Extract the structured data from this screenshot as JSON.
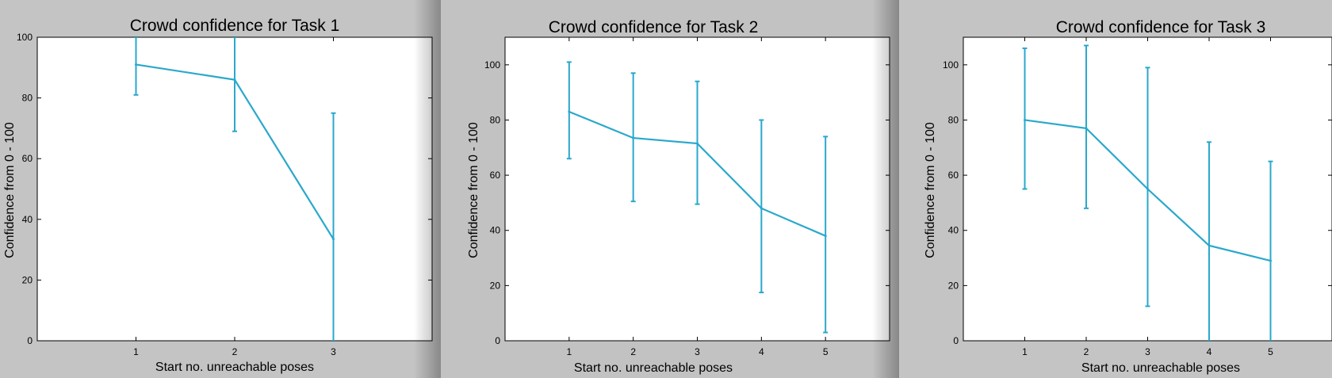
{
  "colors": {
    "series": "#2aa8cc",
    "plot_bg": "#ffffff",
    "frame": "#000000"
  },
  "chart_data": [
    {
      "type": "line",
      "title": "Crowd confidence for Task 1",
      "xlabel": "Start no. unreachable poses",
      "ylabel": "Confidence from 0 - 100",
      "x": [
        1,
        2,
        3
      ],
      "y": [
        91,
        86,
        33.5
      ],
      "err_low": [
        81,
        69,
        0
      ],
      "err_high": [
        100,
        100,
        75
      ],
      "xlim": [
        0,
        4
      ],
      "ylim": [
        0,
        100
      ],
      "xticks": [
        1,
        2,
        3
      ],
      "yticks": [
        0,
        20,
        40,
        60,
        80,
        100
      ],
      "grid": false
    },
    {
      "type": "line",
      "title": "Crowd confidence for Task 2",
      "xlabel": "Start no. unreachable poses",
      "ylabel": "Confidence from 0 - 100",
      "x": [
        1,
        2,
        3,
        4,
        5
      ],
      "y": [
        83,
        73.5,
        71.5,
        48,
        38
      ],
      "err_low": [
        66,
        50.5,
        49.5,
        17.5,
        3
      ],
      "err_high": [
        101,
        97,
        94,
        80,
        74
      ],
      "xlim": [
        0,
        6
      ],
      "ylim": [
        0,
        110
      ],
      "xticks": [
        1,
        2,
        3,
        4,
        5
      ],
      "yticks": [
        0,
        20,
        40,
        60,
        80,
        100
      ],
      "grid": false
    },
    {
      "type": "line",
      "title": "Crowd confidence for Task 3",
      "xlabel": "Start no. unreachable poses",
      "ylabel": "Confidence from 0 - 100",
      "x": [
        1,
        2,
        3,
        4,
        5
      ],
      "y": [
        80,
        77,
        55,
        34.5,
        29
      ],
      "err_low": [
        55,
        48,
        12.5,
        0,
        0
      ],
      "err_high": [
        106,
        107,
        99,
        72,
        65
      ],
      "xlim": [
        0,
        6
      ],
      "ylim": [
        0,
        110
      ],
      "xticks": [
        1,
        2,
        3,
        4,
        5
      ],
      "yticks": [
        0,
        20,
        40,
        60,
        80,
        100
      ],
      "grid": false
    }
  ]
}
